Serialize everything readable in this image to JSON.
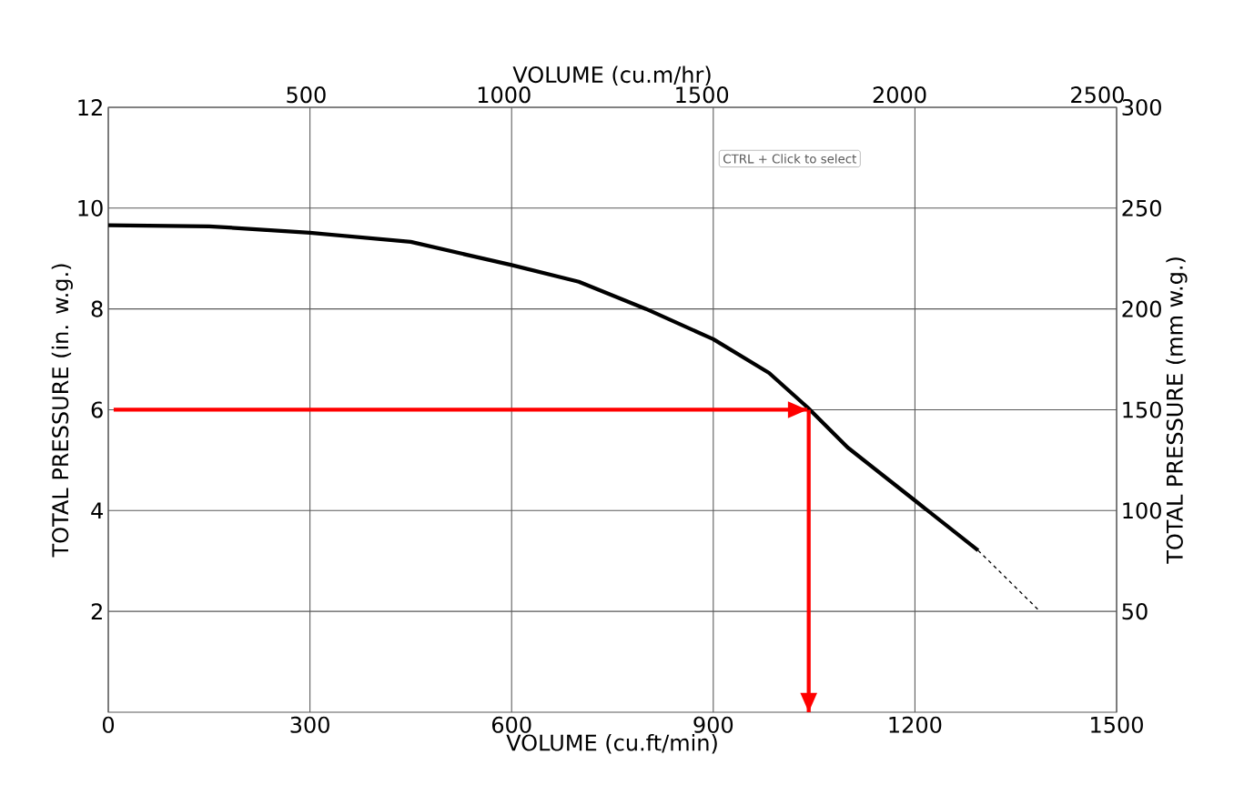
{
  "chart_data": {
    "type": "line",
    "xlabel": "VOLUME (cu.ft/min)",
    "x2label": "VOLUME (cu.m/hr)",
    "ylabel": "TOTAL PRESSURE (in. w.g.)",
    "y2label": "TOTAL PRESSURE (mm w.g.)",
    "xlim": [
      0,
      1500
    ],
    "xticks": [
      0,
      300,
      600,
      900,
      1200,
      1500
    ],
    "ylim": [
      0,
      12
    ],
    "yticks": [
      2,
      4,
      6,
      8,
      10,
      12
    ],
    "x2lim": [
      0,
      2548.5
    ],
    "x2ticks": [
      500,
      1000,
      1500,
      2000,
      2500
    ],
    "y2lim": [
      0,
      300
    ],
    "y2ticks": [
      50,
      100,
      150,
      200,
      250,
      300
    ],
    "grid": true,
    "series": [
      {
        "color": "#000000",
        "line_style": "solid",
        "x": [
          0,
          150,
          300,
          450,
          600,
          700,
          800,
          900,
          983,
          1040,
          1100,
          1200,
          1294
        ],
        "values": [
          9.66,
          9.64,
          9.51,
          9.33,
          8.87,
          8.54,
          8.0,
          7.4,
          6.73,
          6.05,
          5.25,
          4.2,
          3.21
        ]
      },
      {
        "color": "#000000",
        "line_style": "dashed",
        "x": [
          1294,
          1386
        ],
        "values": [
          3.21,
          2.0
        ]
      },
      {
        "color": "#ff0000",
        "line_style": "solid",
        "x": [
          8,
          1040
        ],
        "values": [
          6,
          6
        ]
      },
      {
        "color": "#ff0000",
        "line_style": "solid",
        "x": [
          1042,
          1042
        ],
        "values": [
          6,
          0
        ]
      }
    ],
    "annotations": [
      "CTRL + Click to select"
    ]
  }
}
